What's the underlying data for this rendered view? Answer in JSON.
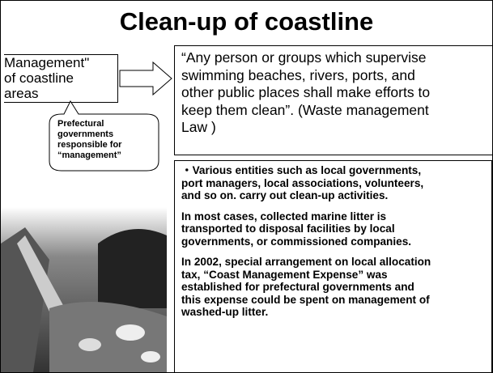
{
  "title": "Clean-up of coastline",
  "management": {
    "lines": [
      "Management\"",
      "of coastline",
      "areas"
    ]
  },
  "quote": {
    "lines": [
      "“Any person or groups which supervise",
      "swimming beaches, rivers, ports, and",
      "other public places shall make efforts to",
      "keep them clean”. (Waste management",
      "Law )"
    ]
  },
  "callout": {
    "lines": [
      "Prefectural",
      "governments",
      "responsible for",
      "“management”"
    ]
  },
  "bullets": [
    {
      "lines": [
        "・Various entities such as local governments,",
        "port managers, local associations, volunteers,",
        "and so on. carry out clean-up activities."
      ]
    },
    {
      "lines": [
        "In most cases, collected marine litter is",
        "transported to disposal facilities by  local",
        "governments, or commissioned companies."
      ]
    },
    {
      "lines": [
        "In 2002, special arrangement on local allocation",
        "tax, “Coast Management Expense” was",
        "established for prefectural governments and",
        "this expense could be spent on management of",
        "washed-up litter."
      ]
    }
  ]
}
